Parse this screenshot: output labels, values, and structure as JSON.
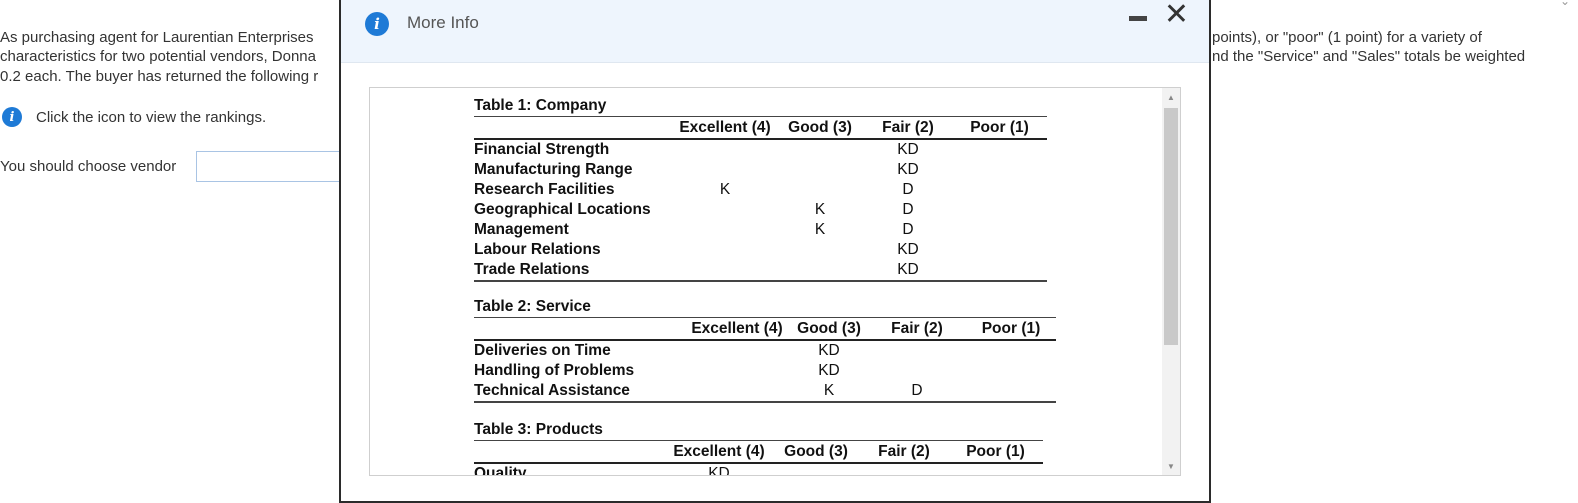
{
  "background": {
    "line1_left": "As purchasing agent for Laurentian Enterprises",
    "line2_left": "characteristics for two potential vendors, Donna",
    "line3_left": "0.2 each. The buyer has returned the following r",
    "line1_right": "points), or \"poor\"  (1 point) for a variety of",
    "line2_right": "nd the \"Service\" and \"Sales\" totals be weighted",
    "hint_label": "Click the icon to view the rankings.",
    "choose_label": "You should choose vendor",
    "choose_value": ""
  },
  "modal": {
    "title": "More Info",
    "minimize_icon": "minimize-icon",
    "close_icon": "close-icon",
    "info_icon": "i"
  },
  "tables": [
    {
      "title": "Table 1: Company",
      "headers": [
        "",
        "Excellent (4)",
        "Good (3)",
        "Fair (2)",
        "Poor (1)"
      ],
      "rows": [
        [
          "Financial Strength",
          "",
          "",
          "KD",
          ""
        ],
        [
          "Manufacturing Range",
          "",
          "",
          "KD",
          ""
        ],
        [
          "Research Facilities",
          "K",
          "",
          "D",
          ""
        ],
        [
          "Geographical Locations",
          "",
          "K",
          "D",
          ""
        ],
        [
          "Management",
          "",
          "K",
          "D",
          ""
        ],
        [
          "Labour Relations",
          "",
          "",
          "KD",
          ""
        ],
        [
          "Trade Relations",
          "",
          "",
          "KD",
          ""
        ]
      ]
    },
    {
      "title": "Table 2: Service",
      "headers": [
        "",
        "Excellent (4)",
        "Good (3)",
        "Fair (2)",
        "Poor (1)"
      ],
      "rows": [
        [
          "Deliveries on Time",
          "",
          "KD",
          "",
          ""
        ],
        [
          "Handling of Problems",
          "",
          "KD",
          "",
          ""
        ],
        [
          "Technical Assistance",
          "",
          "K",
          "D",
          ""
        ]
      ]
    },
    {
      "title": "Table 3: Products",
      "headers": [
        "",
        "Excellent (4)",
        "Good (3)",
        "Fair (2)",
        "Poor (1)"
      ],
      "rows": [
        [
          "Quality",
          "KD",
          "",
          "",
          ""
        ]
      ]
    }
  ]
}
